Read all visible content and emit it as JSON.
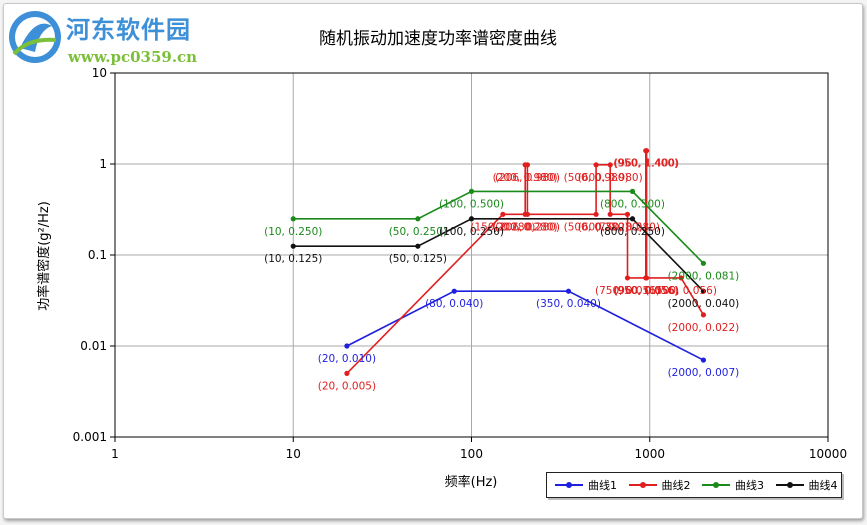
{
  "watermark": {
    "title": "河东软件园",
    "url": "www.pc0359.cn"
  },
  "chart_data": {
    "type": "line",
    "title": "随机振动加速度功率谱密度曲线",
    "xlabel": "频率(Hz)",
    "ylabel": "功率谱密度(g²/Hz)",
    "xscale": "log",
    "yscale": "log",
    "xlim": [
      1,
      10000
    ],
    "ylim": [
      0.001,
      10
    ],
    "x_ticks": [
      "1",
      "10",
      "100",
      "1000",
      "10000"
    ],
    "y_ticks": [
      "10",
      "1",
      "0.1",
      "0.01",
      "0.001"
    ],
    "grid": true,
    "legend_position": "bottom-right",
    "series": [
      {
        "name": "曲线1",
        "color": "#1f1fe0",
        "points": [
          [
            20,
            0.01
          ],
          [
            80,
            0.04
          ],
          [
            350,
            0.04
          ],
          [
            2000,
            0.007
          ]
        ],
        "labels": [
          "(20, 0.010)",
          "(80, 0.040)",
          "(350, 0.040)",
          "(2000, 0.007)"
        ]
      },
      {
        "name": "曲线2",
        "color": "#e01f1f",
        "points": [
          [
            20,
            0.005
          ],
          [
            150,
            0.28
          ],
          [
            200,
            0.28
          ],
          [
            200,
            0.98
          ],
          [
            206,
            0.98
          ],
          [
            206,
            0.28
          ],
          [
            500,
            0.28
          ],
          [
            500,
            0.98
          ],
          [
            600,
            0.98
          ],
          [
            600,
            0.28
          ],
          [
            750,
            0.28
          ],
          [
            750,
            0.056
          ],
          [
            950,
            0.056
          ],
          [
            950,
            1.4
          ],
          [
            960,
            1.4
          ],
          [
            960,
            0.056
          ],
          [
            1500,
            0.056
          ],
          [
            2000,
            0.022
          ]
        ],
        "labels": [
          "(20, 0.005)",
          "(150, 0.280)",
          "(200, 0.280)",
          "(200, 0.980)",
          "(206, 0.980)",
          "(206, 0.280)",
          "(500, 0.280)",
          "(500, 0.980)",
          "(600, 0.980)",
          "(600, 0.280)",
          "(750, 0.280)",
          "(750, 0.056)",
          "(950, 0.056)",
          "(950, 1.400)",
          "(960, 1.400)",
          "(960, 0.056)",
          "(1500, 0.056)",
          "(2000, 0.022)"
        ]
      },
      {
        "name": "曲线3",
        "color": "#1a8a1a",
        "points": [
          [
            10,
            0.25
          ],
          [
            50,
            0.25
          ],
          [
            100,
            0.5
          ],
          [
            800,
            0.5
          ],
          [
            2000,
            0.081
          ]
        ],
        "labels": [
          "(10, 0.250)",
          "(50, 0.250)",
          "(100, 0.500)",
          "(800, 0.500)",
          "(2000, 0.081)"
        ]
      },
      {
        "name": "曲线4",
        "color": "#111111",
        "points": [
          [
            10,
            0.125
          ],
          [
            50,
            0.125
          ],
          [
            100,
            0.25
          ],
          [
            800,
            0.25
          ],
          [
            2000,
            0.04
          ]
        ],
        "labels": [
          "(10, 0.125)",
          "(50, 0.125)",
          "(100, 0.250)",
          "(800, 0.250)",
          "(2000, 0.040)"
        ]
      }
    ]
  }
}
